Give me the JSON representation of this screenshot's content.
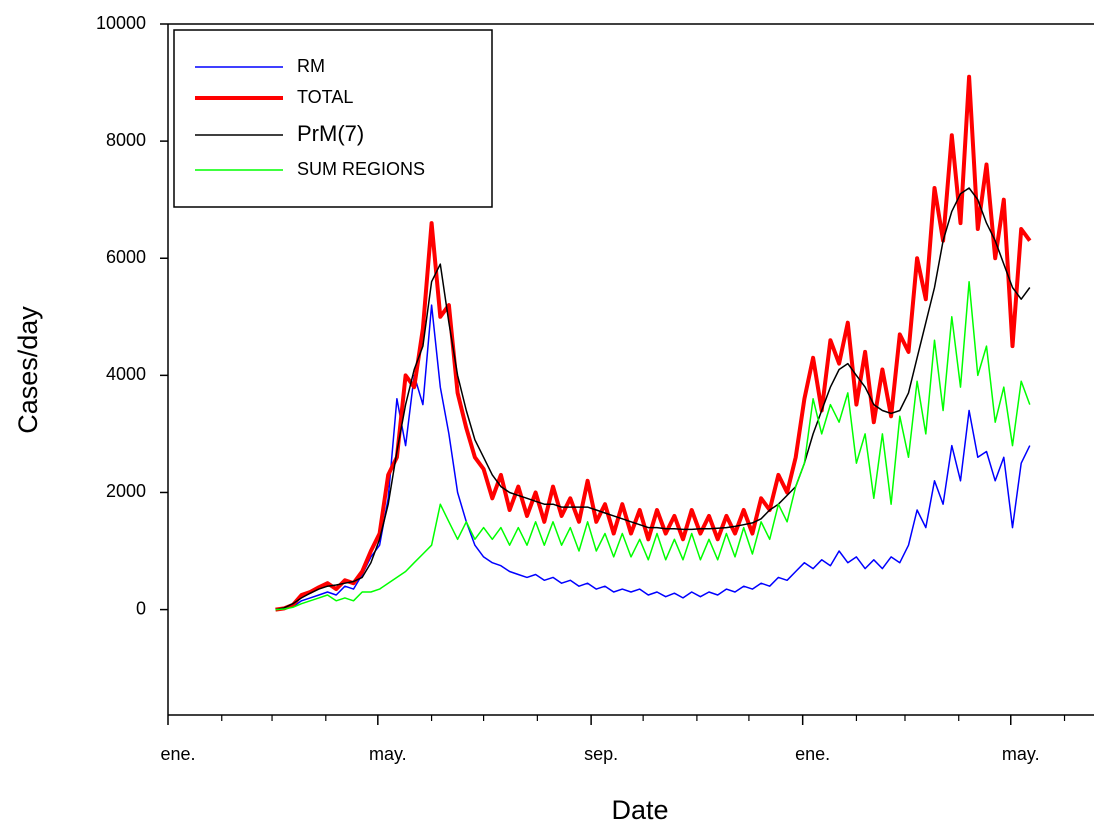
{
  "chart_data": {
    "type": "line",
    "xlabel": "Date",
    "ylabel": "Cases/day",
    "xlim": [
      0,
      534
    ],
    "ylim": [
      -1800,
      10000
    ],
    "xticks": [
      {
        "value": 0,
        "label": "ene."
      },
      {
        "value": 121,
        "label": "may."
      },
      {
        "value": 244,
        "label": "sep."
      },
      {
        "value": 366,
        "label": "ene."
      },
      {
        "value": 486,
        "label": "may."
      }
    ],
    "xminor_ticks": [
      31,
      60,
      91,
      152,
      182,
      213,
      274,
      305,
      335,
      397,
      425,
      456,
      517
    ],
    "yticks": [
      0,
      2000,
      4000,
      6000,
      8000,
      10000
    ],
    "grid": false,
    "legend": "upper left",
    "x": [
      62,
      67,
      72,
      77,
      82,
      87,
      92,
      97,
      102,
      107,
      112,
      117,
      122,
      127,
      132,
      137,
      142,
      147,
      152,
      157,
      162,
      167,
      172,
      177,
      182,
      187,
      192,
      197,
      202,
      207,
      212,
      217,
      222,
      227,
      232,
      237,
      242,
      247,
      252,
      257,
      262,
      267,
      272,
      277,
      282,
      287,
      292,
      297,
      302,
      307,
      312,
      317,
      322,
      327,
      332,
      337,
      342,
      347,
      352,
      357,
      362,
      367,
      372,
      377,
      382,
      387,
      392,
      397,
      402,
      407,
      412,
      417,
      422,
      427,
      432,
      437,
      442,
      447,
      452,
      457,
      462,
      467,
      472,
      477,
      482,
      487,
      492,
      497
    ],
    "series": [
      {
        "name": "RM",
        "color": "#0000ff",
        "values": [
          0,
          10,
          50,
          150,
          200,
          250,
          300,
          250,
          400,
          350,
          600,
          900,
          1100,
          1900,
          3600,
          2800,
          4000,
          3500,
          5200,
          3800,
          3000,
          2000,
          1500,
          1100,
          900,
          800,
          750,
          650,
          600,
          550,
          600,
          500,
          550,
          450,
          500,
          400,
          450,
          350,
          400,
          300,
          350,
          300,
          350,
          250,
          300,
          220,
          280,
          200,
          300,
          220,
          300,
          250,
          350,
          300,
          400,
          350,
          450,
          400,
          550,
          500,
          650,
          800,
          700,
          850,
          750,
          1000,
          800,
          900,
          700,
          850,
          700,
          900,
          800,
          1100,
          1700,
          1400,
          2200,
          1800,
          2800,
          2200,
          3400,
          2600,
          2700,
          2200,
          2600,
          1400,
          2500,
          2800
        ]
      },
      {
        "name": "TOTAL",
        "color": "#ff0000",
        "values": [
          0,
          20,
          80,
          250,
          300,
          380,
          450,
          350,
          500,
          450,
          650,
          1000,
          1300,
          2300,
          2600,
          4000,
          3800,
          4800,
          6600,
          5000,
          5200,
          3700,
          3100,
          2600,
          2400,
          1900,
          2300,
          1700,
          2100,
          1600,
          2000,
          1500,
          2100,
          1600,
          1900,
          1500,
          2200,
          1500,
          1800,
          1300,
          1800,
          1300,
          1700,
          1200,
          1700,
          1300,
          1600,
          1200,
          1700,
          1300,
          1600,
          1200,
          1600,
          1300,
          1700,
          1300,
          1900,
          1700,
          2300,
          2000,
          2600,
          3600,
          4300,
          3400,
          4600,
          4200,
          4900,
          3500,
          4400,
          3200,
          4100,
          3300,
          4700,
          4400,
          6000,
          5300,
          7200,
          6300,
          8100,
          6600,
          9100,
          6500,
          7600,
          6000,
          7000,
          4500,
          6500,
          6300
        ]
      },
      {
        "name": "PrM(7)",
        "color": "#000000",
        "values": [
          0,
          30,
          100,
          200,
          280,
          350,
          400,
          420,
          450,
          480,
          550,
          800,
          1200,
          1800,
          2700,
          3500,
          4100,
          4500,
          5600,
          5900,
          4900,
          4000,
          3400,
          2900,
          2600,
          2300,
          2100,
          2000,
          1950,
          1900,
          1850,
          1800,
          1800,
          1750,
          1750,
          1750,
          1750,
          1700,
          1650,
          1600,
          1550,
          1500,
          1450,
          1400,
          1400,
          1380,
          1380,
          1370,
          1370,
          1380,
          1380,
          1390,
          1400,
          1420,
          1450,
          1480,
          1550,
          1700,
          1800,
          1950,
          2100,
          2500,
          3000,
          3400,
          3800,
          4100,
          4200,
          4000,
          3800,
          3500,
          3400,
          3350,
          3400,
          3700,
          4300,
          4900,
          5500,
          6300,
          6800,
          7100,
          7200,
          7000,
          6600,
          6300,
          5900,
          5500,
          5300,
          5500
        ]
      },
      {
        "name": "SUM REGIONS",
        "color": "#00ff00",
        "values": [
          0,
          10,
          40,
          100,
          150,
          200,
          250,
          150,
          200,
          150,
          300,
          300,
          350,
          450,
          550,
          650,
          800,
          950,
          1100,
          1800,
          1500,
          1200,
          1500,
          1200,
          1400,
          1200,
          1400,
          1100,
          1400,
          1100,
          1500,
          1100,
          1500,
          1100,
          1400,
          1000,
          1500,
          1000,
          1300,
          900,
          1300,
          900,
          1200,
          850,
          1300,
          850,
          1200,
          850,
          1300,
          850,
          1200,
          850,
          1300,
          900,
          1400,
          950,
          1500,
          1200,
          1800,
          1500,
          2100,
          2500,
          3600,
          3000,
          3500,
          3200,
          3700,
          2500,
          3000,
          1900,
          3000,
          1800,
          3300,
          2600,
          3900,
          3000,
          4600,
          3400,
          5000,
          3800,
          5600,
          4000,
          4500,
          3200,
          3800,
          2800,
          3900,
          3500
        ]
      }
    ]
  }
}
